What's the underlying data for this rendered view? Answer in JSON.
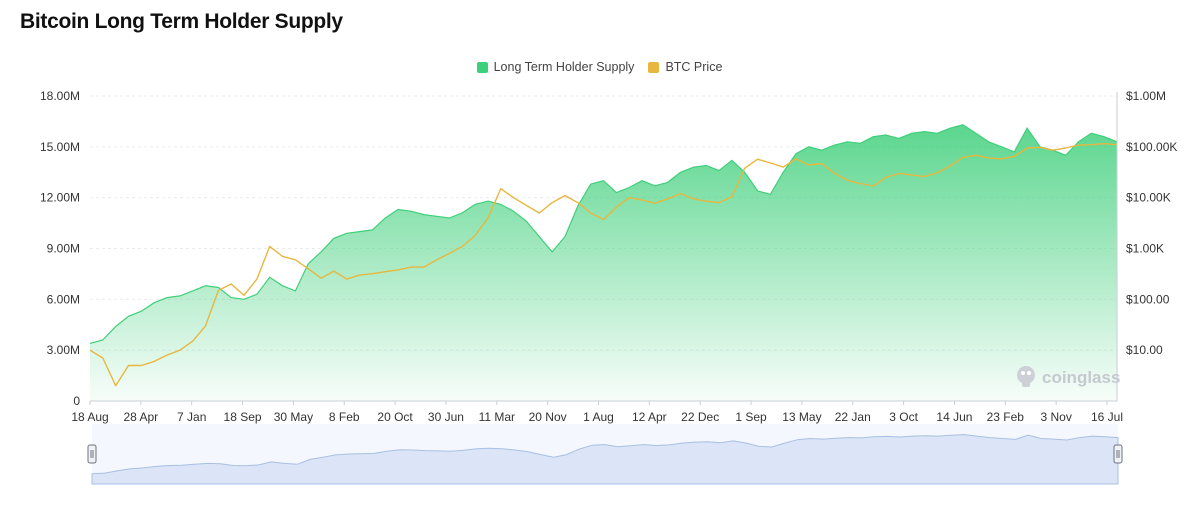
{
  "title": "Bitcoin Long Term Holder Supply",
  "watermark": "coinglass",
  "colors": {
    "supply": "#3ecf7a",
    "price": "#e7b73f",
    "grid": "#e9ecef",
    "navigator_fill": "#dbe5f7",
    "navigator_line": "#a9bfe3"
  },
  "icons": [
    "coinglass-logo-icon",
    "navigator-handle-icon"
  ],
  "chart_data": {
    "type": "area",
    "legend": {
      "placement": "top-center"
    },
    "grid": {
      "horizontal": true,
      "vertical": false
    },
    "x": {
      "tick_labels": [
        "18 Aug",
        "28 Apr",
        "7 Jan",
        "18 Sep",
        "30 May",
        "8 Feb",
        "20 Oct",
        "30 Jun",
        "11 Mar",
        "20 Nov",
        "1 Aug",
        "12 Apr",
        "22 Dec",
        "1 Sep",
        "13 May",
        "22 Jan",
        "3 Oct",
        "14 Jun",
        "23 Feb",
        "3 Nov",
        "16 Jul"
      ]
    },
    "y_left": {
      "min": 0,
      "max": 18000000,
      "ticks": [
        0,
        3000000,
        6000000,
        9000000,
        12000000,
        15000000,
        18000000
      ],
      "tick_labels": [
        "0",
        "3.00M",
        "6.00M",
        "9.00M",
        "12.00M",
        "15.00M",
        "18.00M"
      ]
    },
    "y_right": {
      "scale": "log",
      "min": 1,
      "max": 1000000,
      "ticks": [
        10,
        100,
        1000,
        10000,
        100000,
        1000000
      ],
      "tick_labels": [
        "$10.00",
        "$100.00",
        "$1.00K",
        "$10.00K",
        "$100.00K",
        "$1.00M"
      ]
    },
    "series": [
      {
        "name": "Long Term Holder Supply",
        "type": "area",
        "axis": "left",
        "x": [
          0,
          1,
          2,
          3,
          4,
          5,
          6,
          7,
          8,
          9,
          10,
          11,
          12,
          13,
          14,
          15,
          16,
          17,
          18,
          19,
          20,
          21,
          22,
          23,
          24,
          25,
          26,
          27,
          28,
          29,
          30,
          31,
          32,
          33,
          34,
          35,
          36,
          37,
          38,
          39,
          40,
          41,
          42,
          43,
          44,
          45,
          46,
          47,
          48,
          49,
          50,
          51,
          52,
          53,
          54,
          55,
          56,
          57,
          58,
          59,
          60,
          61,
          62,
          63,
          64,
          65,
          66,
          67,
          68,
          69,
          70,
          71,
          72,
          73,
          74,
          75,
          76,
          77,
          78,
          79,
          80
        ],
        "values": [
          3400000,
          3600000,
          4400000,
          5000000,
          5300000,
          5800000,
          6100000,
          6200000,
          6500000,
          6800000,
          6700000,
          6100000,
          6000000,
          6300000,
          7300000,
          6800000,
          6500000,
          8100000,
          8800000,
          9600000,
          9900000,
          10000000,
          10100000,
          10800000,
          11300000,
          11200000,
          11000000,
          10900000,
          10800000,
          11100000,
          11600000,
          11800000,
          11600000,
          11200000,
          10600000,
          9700000,
          8800000,
          9700000,
          11500000,
          12800000,
          13000000,
          12300000,
          12600000,
          13000000,
          12700000,
          12900000,
          13500000,
          13800000,
          13900000,
          13600000,
          14200000,
          13500000,
          12400000,
          12200000,
          13500000,
          14600000,
          15000000,
          14800000,
          15100000,
          15300000,
          15200000,
          15600000,
          15700000,
          15500000,
          15800000,
          15900000,
          15800000,
          16100000,
          16300000,
          15800000,
          15300000,
          15000000,
          14700000,
          16100000,
          15000000,
          14800000,
          14500000,
          15300000,
          15800000,
          15600000,
          15300000
        ]
      },
      {
        "name": "BTC Price",
        "type": "line",
        "axis": "right",
        "x": [
          0,
          1,
          2,
          3,
          4,
          5,
          6,
          7,
          8,
          9,
          10,
          11,
          12,
          13,
          14,
          15,
          16,
          17,
          18,
          19,
          20,
          21,
          22,
          23,
          24,
          25,
          26,
          27,
          28,
          29,
          30,
          31,
          32,
          33,
          34,
          35,
          36,
          37,
          38,
          39,
          40,
          41,
          42,
          43,
          44,
          45,
          46,
          47,
          48,
          49,
          50,
          51,
          52,
          53,
          54,
          55,
          56,
          57,
          58,
          59,
          60,
          61,
          62,
          63,
          64,
          65,
          66,
          67,
          68,
          69,
          70,
          71,
          72,
          73,
          74,
          75,
          76,
          77,
          78,
          79,
          80
        ],
        "values": [
          10,
          7,
          2,
          5,
          5,
          6,
          8,
          10,
          15,
          30,
          150,
          200,
          120,
          250,
          1100,
          700,
          600,
          400,
          260,
          360,
          250,
          300,
          320,
          350,
          380,
          430,
          430,
          600,
          800,
          1100,
          1800,
          4000,
          15000,
          10000,
          7000,
          5000,
          8000,
          11000,
          8000,
          5000,
          3700,
          6500,
          10000,
          9000,
          7800,
          9500,
          12000,
          9500,
          8500,
          8000,
          10500,
          38000,
          57000,
          48000,
          40000,
          58000,
          44000,
          47000,
          30000,
          22000,
          19000,
          17000,
          25000,
          30000,
          28000,
          26000,
          31000,
          42000,
          62000,
          68000,
          60000,
          58000,
          65000,
          95000,
          98000,
          86000,
          95000,
          108000,
          110000,
          115000,
          110000
        ]
      }
    ]
  }
}
